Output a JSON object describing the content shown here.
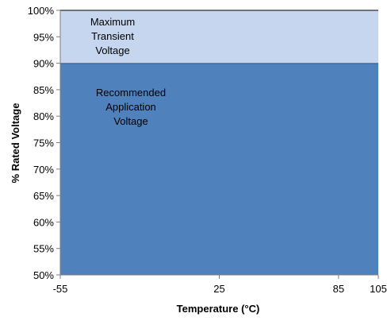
{
  "chart_data": {
    "type": "area",
    "title": "",
    "xlabel": "Temperature (°C)",
    "ylabel": "% Rated Voltage",
    "xlim": [
      -55,
      105
    ],
    "ylim": [
      50,
      100
    ],
    "xticks": [
      -55,
      25,
      85,
      105
    ],
    "xtick_labels": [
      "-55",
      "25",
      "85",
      "105"
    ],
    "yticks": [
      50,
      55,
      60,
      65,
      70,
      75,
      80,
      85,
      90,
      95,
      100
    ],
    "ytick_labels": [
      "50%",
      "55%",
      "60%",
      "65%",
      "70%",
      "75%",
      "80%",
      "85%",
      "90%",
      "95%",
      "100%"
    ],
    "regions": [
      {
        "label_lines": [
          "Recommended",
          "Application",
          "Voltage"
        ],
        "x": [
          -55,
          105
        ],
        "y_low": 50,
        "y_high": 90,
        "color": "#4f81bd"
      },
      {
        "label_lines": [
          "Maximum",
          "Transient",
          "Voltage"
        ],
        "x": [
          -55,
          105
        ],
        "y_low": 90,
        "y_high": 100,
        "color": "#c5d6ee"
      }
    ],
    "grid": false,
    "legend": "none"
  }
}
